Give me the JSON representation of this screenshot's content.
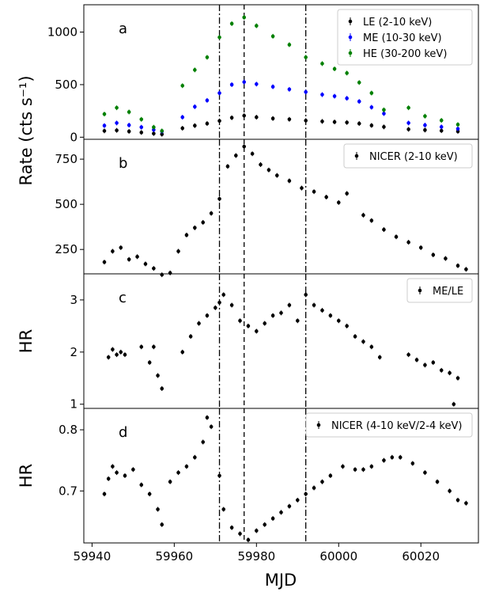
{
  "figure": {
    "xlabel": "MJD",
    "x_ticks": [
      59940,
      59960,
      59980,
      60000,
      60020
    ],
    "xlim": [
      59938,
      60034
    ],
    "vlines": [
      {
        "x": 59971,
        "style": "dashdot"
      },
      {
        "x": 59977,
        "style": "dashed"
      },
      {
        "x": 59992,
        "style": "dashdot"
      }
    ]
  },
  "chart_data": [
    {
      "type": "scatter",
      "panel": "a",
      "ylabel": "Rate (cts s⁻¹)",
      "ylim": [
        -20,
        1260
      ],
      "y_ticks": [
        0,
        500,
        1000
      ],
      "legend": "top-right",
      "series": [
        {
          "name": "LE (2-10 keV)",
          "color": "#000000",
          "points": [
            [
              59943,
              60
            ],
            [
              59946,
              65
            ],
            [
              59949,
              55
            ],
            [
              59952,
              45
            ],
            [
              59955,
              35
            ],
            [
              59957,
              28
            ],
            [
              59962,
              85
            ],
            [
              59965,
              110
            ],
            [
              59968,
              130
            ],
            [
              59971,
              155
            ],
            [
              59974,
              185
            ],
            [
              59977,
              205
            ],
            [
              59980,
              190
            ],
            [
              59984,
              178
            ],
            [
              59988,
              170
            ],
            [
              59992,
              158
            ],
            [
              59996,
              150
            ],
            [
              59999,
              145
            ],
            [
              60002,
              140
            ],
            [
              60005,
              130
            ],
            [
              60008,
              112
            ],
            [
              60011,
              98
            ],
            [
              60017,
              75
            ],
            [
              60021,
              68
            ],
            [
              60025,
              62
            ],
            [
              60029,
              55
            ]
          ]
        },
        {
          "name": "ME (10-30 keV)",
          "color": "#0000ff",
          "points": [
            [
              59943,
              110
            ],
            [
              59946,
              135
            ],
            [
              59949,
              115
            ],
            [
              59952,
              95
            ],
            [
              59955,
              70
            ],
            [
              59957,
              55
            ],
            [
              59962,
              190
            ],
            [
              59965,
              290
            ],
            [
              59968,
              350
            ],
            [
              59971,
              420
            ],
            [
              59974,
              500
            ],
            [
              59977,
              525
            ],
            [
              59980,
              505
            ],
            [
              59984,
              480
            ],
            [
              59988,
              455
            ],
            [
              59992,
              430
            ],
            [
              59996,
              405
            ],
            [
              59999,
              390
            ],
            [
              60002,
              370
            ],
            [
              60005,
              340
            ],
            [
              60008,
              285
            ],
            [
              60011,
              225
            ],
            [
              60017,
              135
            ],
            [
              60021,
              115
            ],
            [
              60025,
              98
            ],
            [
              60029,
              80
            ]
          ]
        },
        {
          "name": "HE (30-200 keV)",
          "color": "#008000",
          "points": [
            [
              59943,
              220
            ],
            [
              59946,
              280
            ],
            [
              59949,
              240
            ],
            [
              59952,
              170
            ],
            [
              59955,
              95
            ],
            [
              59957,
              60
            ],
            [
              59962,
              490
            ],
            [
              59965,
              640
            ],
            [
              59968,
              760
            ],
            [
              59971,
              950
            ],
            [
              59974,
              1080
            ],
            [
              59977,
              1140
            ],
            [
              59980,
              1060
            ],
            [
              59984,
              960
            ],
            [
              59988,
              880
            ],
            [
              59992,
              760
            ],
            [
              59996,
              700
            ],
            [
              59999,
              650
            ],
            [
              60002,
              610
            ],
            [
              60005,
              520
            ],
            [
              60008,
              420
            ],
            [
              60011,
              260
            ],
            [
              60017,
              280
            ],
            [
              60021,
              200
            ],
            [
              60025,
              160
            ],
            [
              60029,
              120
            ]
          ]
        }
      ]
    },
    {
      "type": "scatter",
      "panel": "b",
      "ylabel": "",
      "ylim": [
        115,
        860
      ],
      "y_ticks": [
        250,
        500,
        750
      ],
      "legend": "top-right",
      "series": [
        {
          "name": "NICER (2-10 keV)",
          "color": "#000000",
          "points": [
            [
              59943,
              180
            ],
            [
              59945,
              240
            ],
            [
              59947,
              260
            ],
            [
              59949,
              195
            ],
            [
              59951,
              210
            ],
            [
              59953,
              170
            ],
            [
              59955,
              145
            ],
            [
              59957,
              110
            ],
            [
              59959,
              120
            ],
            [
              59961,
              240
            ],
            [
              59963,
              330
            ],
            [
              59965,
              370
            ],
            [
              59967,
              400
            ],
            [
              59969,
              450
            ],
            [
              59971,
              530
            ],
            [
              59973,
              710
            ],
            [
              59975,
              770
            ],
            [
              59977,
              820
            ],
            [
              59979,
              780
            ],
            [
              59981,
              720
            ],
            [
              59983,
              690
            ],
            [
              59985,
              660
            ],
            [
              59988,
              630
            ],
            [
              59991,
              590
            ],
            [
              59994,
              570
            ],
            [
              59997,
              540
            ],
            [
              60000,
              510
            ],
            [
              60002,
              560
            ],
            [
              60006,
              440
            ],
            [
              60008,
              410
            ],
            [
              60011,
              360
            ],
            [
              60014,
              320
            ],
            [
              60017,
              290
            ],
            [
              60020,
              260
            ],
            [
              60023,
              220
            ],
            [
              60026,
              200
            ],
            [
              60029,
              160
            ],
            [
              60031,
              140
            ]
          ]
        }
      ]
    },
    {
      "type": "scatter",
      "panel": "c",
      "ylabel": "HR",
      "ylim": [
        0.92,
        3.5
      ],
      "y_ticks": [
        1,
        2,
        3
      ],
      "legend": "top-right",
      "series": [
        {
          "name": "ME/LE",
          "color": "#000000",
          "points": [
            [
              59944,
              1.9
            ],
            [
              59945,
              2.05
            ],
            [
              59946,
              1.95
            ],
            [
              59947,
              2.0
            ],
            [
              59948,
              1.95
            ],
            [
              59952,
              2.1
            ],
            [
              59954,
              1.8
            ],
            [
              59955,
              2.1
            ],
            [
              59956,
              1.55
            ],
            [
              59957,
              1.3
            ],
            [
              59962,
              2.0
            ],
            [
              59964,
              2.3
            ],
            [
              59966,
              2.55
            ],
            [
              59968,
              2.7
            ],
            [
              59970,
              2.85
            ],
            [
              59971,
              2.95
            ],
            [
              59972,
              3.1
            ],
            [
              59974,
              2.9
            ],
            [
              59976,
              2.6
            ],
            [
              59978,
              2.5
            ],
            [
              59980,
              2.4
            ],
            [
              59982,
              2.55
            ],
            [
              59984,
              2.7
            ],
            [
              59986,
              2.75
            ],
            [
              59988,
              2.9
            ],
            [
              59990,
              2.6
            ],
            [
              59992,
              3.1
            ],
            [
              59994,
              2.9
            ],
            [
              59996,
              2.8
            ],
            [
              59998,
              2.7
            ],
            [
              60000,
              2.6
            ],
            [
              60002,
              2.5
            ],
            [
              60004,
              2.3
            ],
            [
              60006,
              2.2
            ],
            [
              60008,
              2.1
            ],
            [
              60010,
              1.9
            ],
            [
              60017,
              1.95
            ],
            [
              60019,
              1.85
            ],
            [
              60021,
              1.75
            ],
            [
              60023,
              1.8
            ],
            [
              60025,
              1.65
            ],
            [
              60027,
              1.6
            ],
            [
              60028,
              1.0
            ],
            [
              60029,
              1.5
            ]
          ]
        }
      ]
    },
    {
      "type": "scatter",
      "panel": "d",
      "ylabel": "HR",
      "ylim": [
        0.615,
        0.835
      ],
      "y_ticks": [
        0.7,
        0.8
      ],
      "legend": "top-right",
      "series": [
        {
          "name": "NICER (4-10 keV/2-4 keV)",
          "color": "#000000",
          "points": [
            [
              59943,
              0.695
            ],
            [
              59944,
              0.72
            ],
            [
              59945,
              0.74
            ],
            [
              59946,
              0.73
            ],
            [
              59948,
              0.725
            ],
            [
              59950,
              0.735
            ],
            [
              59952,
              0.71
            ],
            [
              59954,
              0.695
            ],
            [
              59956,
              0.67
            ],
            [
              59957,
              0.645
            ],
            [
              59959,
              0.715
            ],
            [
              59961,
              0.73
            ],
            [
              59963,
              0.74
            ],
            [
              59965,
              0.755
            ],
            [
              59967,
              0.78
            ],
            [
              59968,
              0.82
            ],
            [
              59969,
              0.805
            ],
            [
              59971,
              0.725
            ],
            [
              59972,
              0.67
            ],
            [
              59974,
              0.64
            ],
            [
              59976,
              0.63
            ],
            [
              59978,
              0.62
            ],
            [
              59980,
              0.635
            ],
            [
              59982,
              0.645
            ],
            [
              59984,
              0.655
            ],
            [
              59986,
              0.665
            ],
            [
              59988,
              0.675
            ],
            [
              59990,
              0.685
            ],
            [
              59992,
              0.695
            ],
            [
              59994,
              0.705
            ],
            [
              59996,
              0.715
            ],
            [
              59998,
              0.725
            ],
            [
              60001,
              0.74
            ],
            [
              60004,
              0.735
            ],
            [
              60006,
              0.735
            ],
            [
              60008,
              0.74
            ],
            [
              60011,
              0.75
            ],
            [
              60013,
              0.755
            ],
            [
              60015,
              0.755
            ],
            [
              60018,
              0.745
            ],
            [
              60021,
              0.73
            ],
            [
              60024,
              0.715
            ],
            [
              60027,
              0.7
            ],
            [
              60029,
              0.685
            ],
            [
              60031,
              0.68
            ]
          ]
        }
      ]
    }
  ],
  "panel_letters": [
    "a",
    "b",
    "c",
    "d"
  ]
}
